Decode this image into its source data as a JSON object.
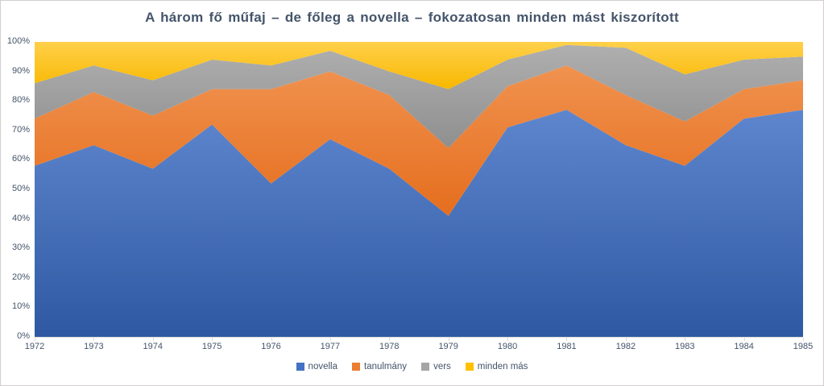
{
  "chart_data": {
    "type": "area",
    "stacking": "percent",
    "title": "A három fő műfaj – de főleg a novella – fokozatosan minden mást kiszorított",
    "categories": [
      "1972",
      "1973",
      "1974",
      "1975",
      "1976",
      "1977",
      "1978",
      "1979",
      "1980",
      "1981",
      "1982",
      "1983",
      "1984",
      "1985"
    ],
    "y_ticks": [
      "0%",
      "10%",
      "20%",
      "30%",
      "40%",
      "50%",
      "60%",
      "70%",
      "80%",
      "90%",
      "100%"
    ],
    "ylim": [
      0,
      100
    ],
    "grid": false,
    "legend_position": "bottom",
    "series": [
      {
        "name": "novella",
        "color": "#4472C4",
        "fill_top": "#5E86CE",
        "fill_bottom": "#2E59A2",
        "values": [
          58,
          65,
          57,
          72,
          52,
          67,
          57,
          41,
          71,
          77,
          65,
          58,
          74,
          77
        ]
      },
      {
        "name": "tanulmány",
        "color": "#ED7D31",
        "fill_top": "#F0924F",
        "fill_bottom": "#E56E1E",
        "values": [
          16,
          18,
          18,
          12,
          32,
          23,
          25,
          23,
          14,
          15,
          17,
          15,
          10,
          10
        ]
      },
      {
        "name": "vers",
        "color": "#A5A5A5",
        "fill_top": "#AFAFAF",
        "fill_bottom": "#8F8F8F",
        "values": [
          12,
          9,
          12,
          10,
          8,
          7,
          8,
          20,
          9,
          7,
          16,
          16,
          10,
          8
        ]
      },
      {
        "name": "minden más",
        "color": "#FFC000",
        "fill_top": "#FFD04A",
        "fill_bottom": "#F8B800",
        "values": [
          14,
          8,
          13,
          6,
          8,
          3,
          10,
          16,
          6,
          1,
          2,
          11,
          6,
          5
        ]
      }
    ]
  },
  "style_colors": {
    "title_text": "#44546A",
    "axis_text": "#44546A",
    "axis_line": "#D9D9D9",
    "frame_border": "#D0CECE"
  }
}
